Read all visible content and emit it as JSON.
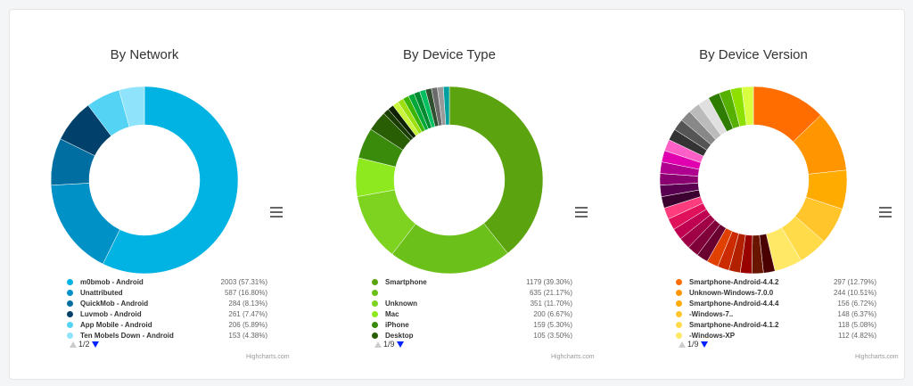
{
  "menu_icon": "hamburger-icon",
  "credit": "Highcharts.com",
  "chart_data": [
    {
      "type": "pie",
      "title": "By Network",
      "pager": "1/2",
      "categories": [
        "m0bmob - Android",
        "Unattributed",
        "QuickMob - Android",
        "Luvmob - Android",
        "App Mobile - Android",
        "Ten Mobels Down - Android"
      ],
      "values": [
        2003,
        587,
        284,
        261,
        206,
        153
      ],
      "labels": [
        "2003 (57.31%)",
        "587 (16.80%)",
        "284 (8.13%)",
        "261 (7.47%)",
        "206 (5.89%)",
        "153 (4.38%)"
      ],
      "percents": [
        57.31,
        16.8,
        8.13,
        7.47,
        5.89,
        4.38
      ],
      "colors": [
        "#00b3e3",
        "#0091c7",
        "#006ea0",
        "#00406a",
        "#55d3f5",
        "#8fe3fb"
      ],
      "other_colors": []
    },
    {
      "type": "pie",
      "title": "By Device Type",
      "pager": "1/9",
      "categories": [
        "Smartphone",
        "",
        "Unknown",
        "Mac",
        "iPhone",
        "Desktop"
      ],
      "values": [
        1179,
        635,
        351,
        200,
        159,
        105
      ],
      "labels": [
        "1179 (39.30%)",
        "635 (21.17%)",
        "351 (11.70%)",
        "200 (6.67%)",
        "159 (5.30%)",
        "105 (3.50%)"
      ],
      "percents": [
        39.3,
        21.17,
        11.7,
        6.67,
        5.3,
        3.5
      ],
      "colors": [
        "#5ba30f",
        "#6cc01a",
        "#7ed321",
        "#8eea1f",
        "#3a8a0c",
        "#2a5e05"
      ],
      "other_colors": [
        "#1a3d02",
        "#0d2000",
        "#c8f53a",
        "#9ee00f",
        "#3cb500",
        "#00a83a",
        "#008a30",
        "#00c060",
        "#2f4f2f",
        "#6a6a6a",
        "#9a9a9a",
        "#00a0a0"
      ]
    },
    {
      "type": "pie",
      "title": "By Device Version",
      "pager": "1/9",
      "categories": [
        "Smartphone-Android-4.4.2",
        "Unknown-Windows-7.0.0",
        "Smartphone-Android-4.4.4",
        "-Windows-7..",
        "Smartphone-Android-4.1.2",
        "-Windows-XP"
      ],
      "values": [
        297,
        244,
        156,
        148,
        118,
        112
      ],
      "labels": [
        "297 (12.79%)",
        "244 (10.51%)",
        "156 (6.72%)",
        "148 (6.37%)",
        "118 (5.08%)",
        "112 (4.82%)"
      ],
      "percents": [
        12.79,
        10.51,
        6.72,
        6.37,
        5.08,
        4.82
      ],
      "colors": [
        "#ff6d00",
        "#ff9500",
        "#ffab00",
        "#ffc52a",
        "#ffdb4a",
        "#ffe866"
      ],
      "other_colors": [
        "#4a0000",
        "#6a1500",
        "#990000",
        "#b32000",
        "#cc2a00",
        "#e04000",
        "#6a0030",
        "#80003a",
        "#a00045",
        "#c00050",
        "#e0105a",
        "#ff3c7e",
        "#3c0030",
        "#5a0050",
        "#8a0070",
        "#b00090",
        "#e000b0",
        "#ff60c8",
        "#333333",
        "#555555",
        "#888888",
        "#bbbbbb",
        "#e0e0e0",
        "#2e7d00",
        "#55b000",
        "#8ee000",
        "#d8ff40"
      ]
    }
  ]
}
